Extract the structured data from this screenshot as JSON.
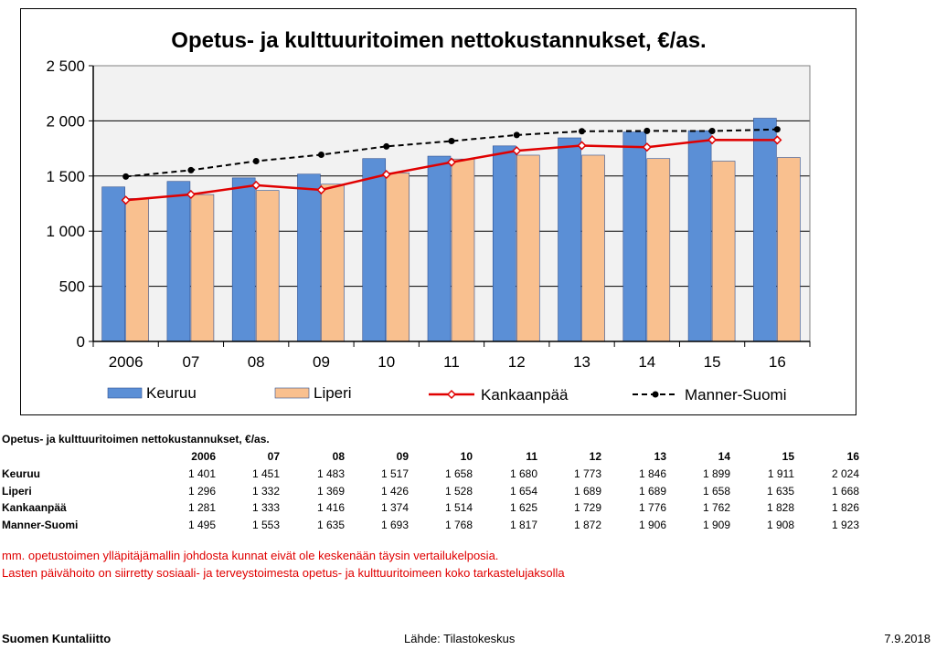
{
  "chart_data": {
    "type": "bar",
    "title": "Opetus- ja kulttuuritoimen nettokustannukset, €/as.",
    "categories": [
      "2006",
      "07",
      "08",
      "09",
      "10",
      "11",
      "12",
      "13",
      "14",
      "15",
      "16"
    ],
    "ylim": [
      0,
      2500
    ],
    "yticks": [
      0,
      500,
      1000,
      1500,
      2000,
      2500
    ],
    "ytick_labels": [
      "0",
      "500",
      "1 000",
      "1 500",
      "2 000",
      "2 500"
    ],
    "grid": true,
    "legend_position": "bottom",
    "series": [
      {
        "name": "Keuruu",
        "kind": "bar",
        "color": "#5b8fd6",
        "values": [
          1401,
          1451,
          1483,
          1517,
          1658,
          1680,
          1773,
          1846,
          1899,
          1911,
          2024
        ]
      },
      {
        "name": "Liperi",
        "kind": "bar",
        "color": "#f9c08f",
        "values": [
          1296,
          1332,
          1369,
          1426,
          1528,
          1654,
          1689,
          1689,
          1658,
          1635,
          1668
        ]
      },
      {
        "name": "Kankaanpää",
        "kind": "line",
        "color": "#e00000",
        "marker": "diamond",
        "values": [
          1281,
          1333,
          1416,
          1374,
          1514,
          1625,
          1729,
          1776,
          1762,
          1828,
          1826
        ]
      },
      {
        "name": "Manner-Suomi",
        "kind": "line-dashed",
        "color": "#000000",
        "marker": "circle",
        "values": [
          1495,
          1553,
          1635,
          1693,
          1768,
          1817,
          1872,
          1906,
          1909,
          1908,
          1923
        ]
      }
    ]
  },
  "table": {
    "title": "Opetus- ja kulttuuritoimen nettokustannukset, €/as.",
    "headers": [
      "2006",
      "07",
      "08",
      "09",
      "10",
      "11",
      "12",
      "13",
      "14",
      "15",
      "16"
    ],
    "rows": [
      {
        "label": "Keuruu",
        "cells": [
          "1 401",
          "1 451",
          "1 483",
          "1 517",
          "1 658",
          "1 680",
          "1 773",
          "1 846",
          "1 899",
          "1 911",
          "2 024"
        ]
      },
      {
        "label": "Liperi",
        "cells": [
          "1 296",
          "1 332",
          "1 369",
          "1 426",
          "1 528",
          "1 654",
          "1 689",
          "1 689",
          "1 658",
          "1 635",
          "1 668"
        ]
      },
      {
        "label": "Kankaanpää",
        "cells": [
          "1 281",
          "1 333",
          "1 416",
          "1 374",
          "1 514",
          "1 625",
          "1 729",
          "1 776",
          "1 762",
          "1 828",
          "1 826"
        ]
      },
      {
        "label": "Manner-Suomi",
        "cells": [
          "1 495",
          "1 553",
          "1 635",
          "1 693",
          "1 768",
          "1 817",
          "1 872",
          "1 906",
          "1 909",
          "1 908",
          "1 923"
        ]
      }
    ]
  },
  "notes": [
    "mm. opetustoimen ylläpitäjämallin johdosta kunnat eivät ole keskenään täysin vertailukelposia.",
    "Lasten päivähoito on siirretty sosiaali- ja terveystoimesta opetus- ja kulttuuritoimeen koko tarkastelujaksolla"
  ],
  "footer": {
    "organization": "Suomen Kuntaliitto",
    "source": "Lähde: Tilastokeskus",
    "date": "7.9.2018"
  }
}
